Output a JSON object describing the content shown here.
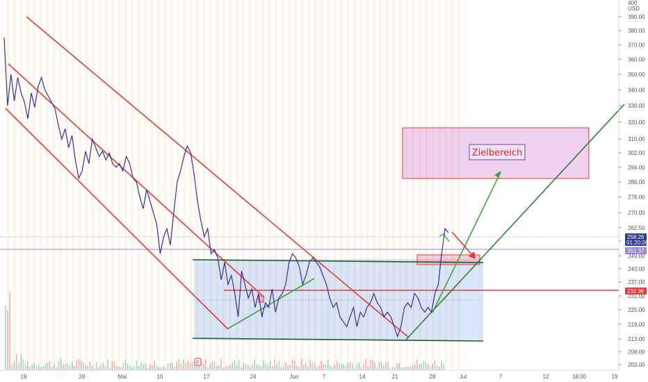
{
  "chart_data": {
    "type": "line",
    "currency": "USD",
    "y_axis": {
      "min": 200,
      "max": 400,
      "ticks": [
        203,
        208,
        213,
        219,
        225,
        231,
        237,
        243,
        249,
        256,
        262.5,
        270,
        278,
        286,
        294,
        302,
        310,
        320,
        330,
        340,
        350,
        360,
        370,
        380,
        390
      ],
      "tick_labels": [
        "203.00",
        "208.00",
        "213.00",
        "219.00",
        "225.00",
        "231.00",
        "237.00",
        "243.00",
        "249.00",
        "256.00",
        "262.50",
        "270.00",
        "278.00",
        "286.00",
        "294.00",
        "302.00",
        "310.00",
        "320.00",
        "330.00",
        "340.00",
        "350.00",
        "360.00",
        "370.00",
        "380.00",
        "390.00"
      ],
      "top_label": "400",
      "scale": "log"
    },
    "x_axis": {
      "tick_labels": [
        "19",
        "26",
        "Mai",
        "10",
        "17",
        "24",
        "Jun",
        "7",
        "14",
        "21",
        "28",
        "Jul",
        "7",
        "12",
        "18:00",
        "19"
      ],
      "tick_index": [
        2,
        9,
        16,
        23,
        30,
        37,
        43,
        50,
        57,
        64,
        71,
        77,
        85,
        92,
        98,
        104
      ]
    },
    "price_badges": [
      {
        "value": "258.26",
        "color": "#2f3a8f",
        "secondary": "01:20:26"
      },
      {
        "value": "251.37",
        "color": "#9c84d6"
      },
      {
        "value": "232.96",
        "color": "#e53935"
      }
    ],
    "series": [
      {
        "values": [
          375,
          330,
          350,
          333,
          348,
          338,
          332,
          322,
          338,
          329,
          342,
          348,
          340,
          336,
          332,
          328,
          318,
          310,
          316,
          305,
          312,
          298,
          288,
          292,
          303,
          296,
          310,
          305,
          300,
          303,
          298,
          302,
          296,
          294,
          296,
          292,
          300,
          296,
          288,
          286,
          278,
          272,
          282,
          276,
          270,
          264,
          250,
          258,
          262,
          254,
          270,
          286,
          292,
          300,
          306,
          302,
          290,
          276,
          266,
          258,
          262,
          250,
          252,
          248,
          238,
          246,
          236,
          240,
          232,
          222,
          242,
          236,
          230,
          234,
          226,
          232,
          222,
          228,
          226,
          234,
          224,
          230,
          232,
          236,
          246,
          250,
          248,
          244,
          236,
          240,
          246,
          248,
          246,
          244,
          240,
          236,
          230,
          226,
          228,
          222,
          220,
          218,
          222,
          226,
          218,
          224,
          222,
          226,
          228,
          232,
          228,
          226,
          222,
          224,
          222,
          218,
          214,
          218,
          226,
          228,
          226,
          232,
          230,
          226,
          224,
          226,
          224,
          232,
          236,
          250,
          262,
          260
        ]
      }
    ],
    "annotation": "Zielbereich"
  }
}
